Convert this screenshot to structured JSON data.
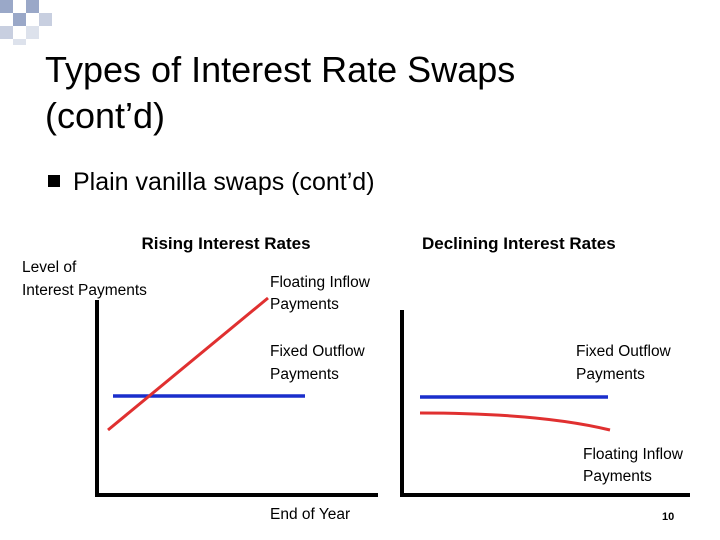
{
  "header": {
    "title_lines": [
      "Types of Interest Rate Swaps",
      "(cont’d)"
    ]
  },
  "bullet": "Plain vanilla swaps (cont’d)",
  "left_panel": {
    "heading": "Rising Interest Rates",
    "axis_label_lines": [
      "Level of",
      "Interest Payments"
    ],
    "floating_lines": [
      "Floating Inflow",
      "Payments"
    ],
    "fixed_lines": [
      "Fixed Outflow",
      "Payments"
    ],
    "x_label": "End of Year"
  },
  "right_panel": {
    "heading": "Declining Interest Rates",
    "fixed_lines": [
      "Fixed Outflow",
      "Payments"
    ],
    "floating_lines": [
      "Floating Inflow",
      "Payments"
    ]
  },
  "page_number": "10"
}
